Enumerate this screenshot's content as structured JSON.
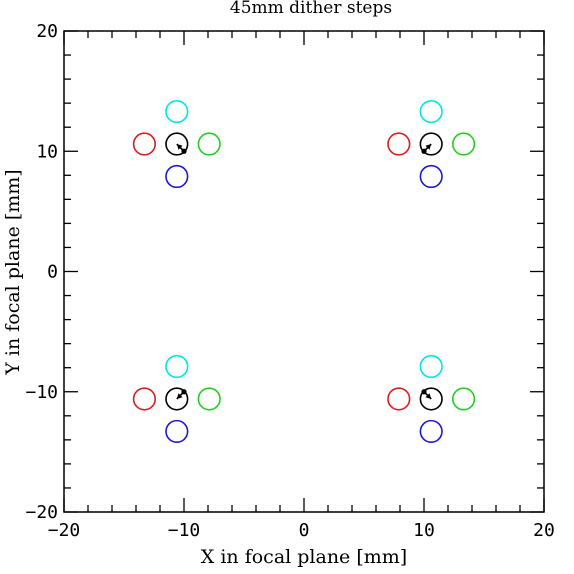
{
  "chart_data": {
    "type": "scatter",
    "title": "45mm dither steps",
    "xlabel": "X in focal plane [mm]",
    "ylabel": "Y in focal plane [mm]",
    "xlim": [
      -20,
      20
    ],
    "ylim": [
      -20,
      20
    ],
    "xticks": [
      -20,
      -10,
      0,
      10,
      20
    ],
    "yticks": [
      -20,
      -10,
      0,
      10,
      20
    ],
    "xtick_labels": [
      "−20",
      "−10",
      "0",
      "10",
      "20"
    ],
    "ytick_labels": [
      "−20",
      "−10",
      "0",
      "10",
      "20"
    ],
    "grid": false,
    "marker_radius_mm": 0.9,
    "groups": [
      {
        "center": [
          -10.6,
          10.6
        ],
        "circles": [
          {
            "color": "#00e5e5",
            "x": -10.6,
            "y": 13.3
          },
          {
            "color": "#d62020",
            "x": -13.3,
            "y": 10.6
          },
          {
            "color": "#000000",
            "x": -10.6,
            "y": 10.6
          },
          {
            "color": "#20d020",
            "x": -7.9,
            "y": 10.6
          },
          {
            "color": "#1a1acc",
            "x": -10.6,
            "y": 7.9
          }
        ],
        "arrow_to": [
          -10.0,
          10.0
        ]
      },
      {
        "center": [
          10.6,
          10.6
        ],
        "circles": [
          {
            "color": "#00e5e5",
            "x": 10.6,
            "y": 13.3
          },
          {
            "color": "#d62020",
            "x": 7.9,
            "y": 10.6
          },
          {
            "color": "#000000",
            "x": 10.6,
            "y": 10.6
          },
          {
            "color": "#20d020",
            "x": 13.3,
            "y": 10.6
          },
          {
            "color": "#1a1acc",
            "x": 10.6,
            "y": 7.9
          }
        ],
        "arrow_to": [
          10.0,
          10.0
        ]
      },
      {
        "center": [
          -10.6,
          -10.6
        ],
        "circles": [
          {
            "color": "#00e5e5",
            "x": -10.6,
            "y": -7.9
          },
          {
            "color": "#d62020",
            "x": -13.3,
            "y": -10.6
          },
          {
            "color": "#000000",
            "x": -10.6,
            "y": -10.6
          },
          {
            "color": "#20d020",
            "x": -7.9,
            "y": -10.6
          },
          {
            "color": "#1a1acc",
            "x": -10.6,
            "y": -13.3
          }
        ],
        "arrow_to": [
          -10.0,
          -10.0
        ]
      },
      {
        "center": [
          10.6,
          -10.6
        ],
        "circles": [
          {
            "color": "#00e5e5",
            "x": 10.6,
            "y": -7.9
          },
          {
            "color": "#d62020",
            "x": 7.9,
            "y": -10.6
          },
          {
            "color": "#000000",
            "x": 10.6,
            "y": -10.6
          },
          {
            "color": "#20d020",
            "x": 13.3,
            "y": -10.6
          },
          {
            "color": "#1a1acc",
            "x": 10.6,
            "y": -13.3
          }
        ],
        "arrow_to": [
          10.0,
          -10.0
        ]
      }
    ]
  }
}
